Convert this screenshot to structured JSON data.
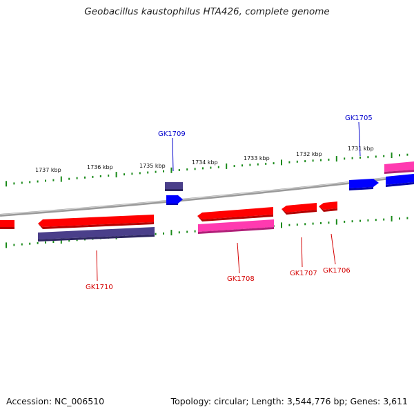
{
  "title": "Geobacillus kaustophilus HTA426, complete genome",
  "footer": {
    "accession": "Accession: NC_006510",
    "summary": "Topology: circular; Length: 3,544,776 bp; Genes: 3,611"
  },
  "colors": {
    "forward_gene": "#ff0000",
    "forward_gene_dark": "#b20000",
    "reverse_gene": "#0000ff",
    "magenta_gene": "#ff3ab0",
    "purple_gene": "#4a3f8a",
    "backbone": "#8a8a8a",
    "ruler": "#1a8a1a",
    "label_red": "#d40000",
    "label_blue": "#0000cc"
  },
  "ruler": {
    "ticks": [
      {
        "label": "1737 kbp"
      },
      {
        "label": "1736 kbp"
      },
      {
        "label": "1735 kbp"
      },
      {
        "label": "1734 kbp"
      },
      {
        "label": "1733 kbp"
      },
      {
        "label": "1732 kbp"
      },
      {
        "label": "1731 kbp"
      }
    ]
  },
  "genes": [
    {
      "label": "GK1710",
      "strand": "reverse"
    },
    {
      "label": "GK1709",
      "strand": "forward"
    },
    {
      "label": "GK1708",
      "strand": "reverse"
    },
    {
      "label": "GK1707",
      "strand": "reverse"
    },
    {
      "label": "GK1706",
      "strand": "reverse"
    },
    {
      "label": "GK1705",
      "strand": "forward"
    }
  ]
}
